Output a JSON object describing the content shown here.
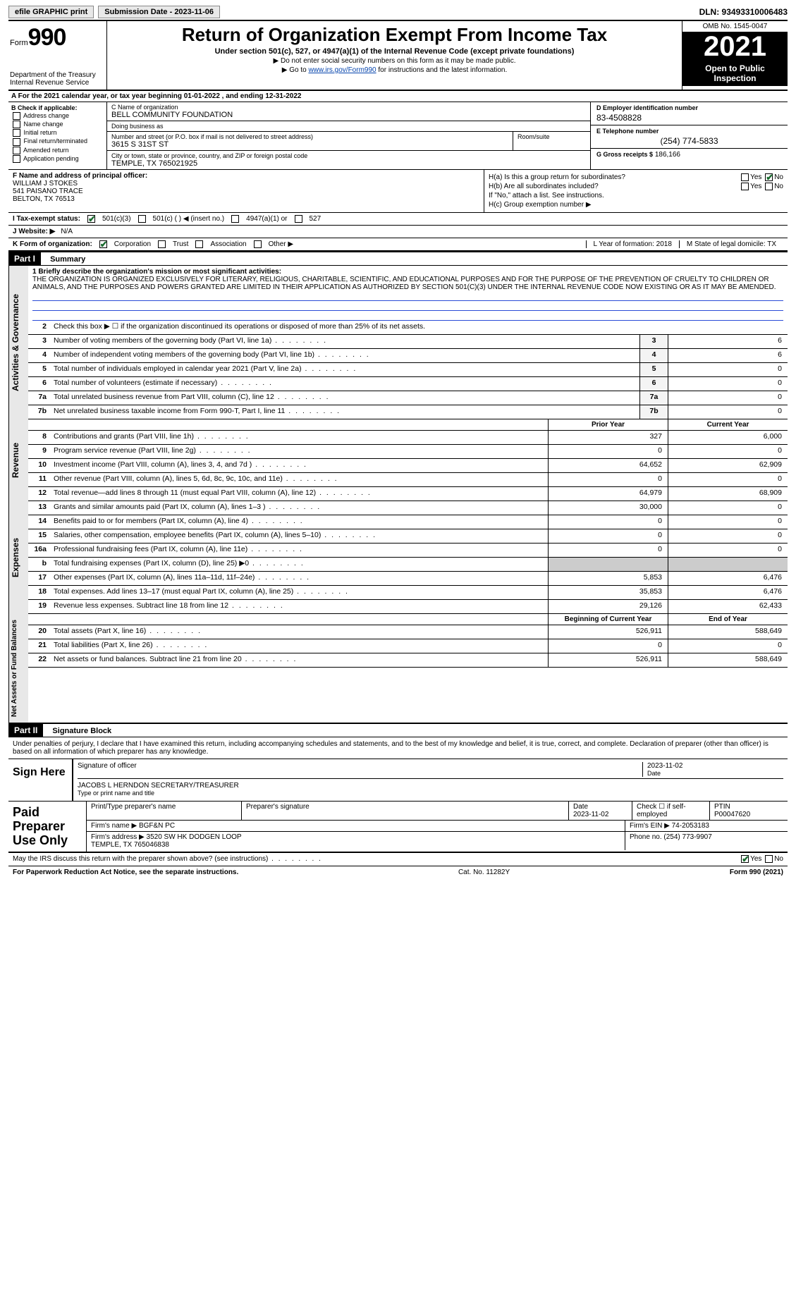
{
  "topbar": {
    "efile": "efile GRAPHIC print",
    "sub_label": "Submission Date - 2023-11-06",
    "dln": "DLN: 93493310006483"
  },
  "header": {
    "form_word": "Form",
    "form_num": "990",
    "dept": "Department of the Treasury\nInternal Revenue Service",
    "title": "Return of Organization Exempt From Income Tax",
    "sub": "Under section 501(c), 527, or 4947(a)(1) of the Internal Revenue Code (except private foundations)",
    "note1": "▶ Do not enter social security numbers on this form as it may be made public.",
    "note2_pre": "▶ Go to ",
    "note2_link": "www.irs.gov/Form990",
    "note2_post": " for instructions and the latest information.",
    "omb": "OMB No. 1545-0047",
    "year": "2021",
    "open": "Open to Public Inspection"
  },
  "row_a": "A For the 2021 calendar year, or tax year beginning 01-01-2022   , and ending 12-31-2022",
  "box_b": {
    "title": "B Check if applicable:",
    "opts": [
      "Address change",
      "Name change",
      "Initial return",
      "Final return/terminated",
      "Amended return",
      "Application pending"
    ]
  },
  "box_c": {
    "name_lbl": "C Name of organization",
    "name": "BELL COMMUNITY FOUNDATION",
    "dba_lbl": "Doing business as",
    "dba": "",
    "street_lbl": "Number and street (or P.O. box if mail is not delivered to street address)",
    "street": "3615 S 31ST ST",
    "room_lbl": "Room/suite",
    "city_lbl": "City or town, state or province, country, and ZIP or foreign postal code",
    "city": "TEMPLE, TX  765021925"
  },
  "box_d": {
    "lbl": "D Employer identification number",
    "val": "83-4508828"
  },
  "box_e": {
    "lbl": "E Telephone number",
    "val": "(254) 774-5833"
  },
  "box_g": {
    "lbl": "G Gross receipts $",
    "val": "186,166"
  },
  "box_f": {
    "lbl": "F Name and address of principal officer:",
    "name": "WILLIAM J STOKES",
    "addr1": "541 PAISANO TRACE",
    "addr2": "BELTON, TX  76513"
  },
  "box_h": {
    "ha": "H(a)  Is this a group return for subordinates?",
    "hb": "H(b)  Are all subordinates included?",
    "hb_note": "If \"No,\" attach a list. See instructions.",
    "hc": "H(c)  Group exemption number ▶"
  },
  "status": {
    "label": "I  Tax-exempt status:",
    "c3": "501(c)(3)",
    "c": "501(c) (  ) ◀ (insert no.)",
    "a1": "4947(a)(1) or",
    "s527": "527"
  },
  "web": {
    "label": "J  Website: ▶",
    "val": "N/A"
  },
  "k": {
    "label": "K Form of organization:",
    "opts": [
      "Corporation",
      "Trust",
      "Association",
      "Other ▶"
    ],
    "l": "L Year of formation: 2018",
    "m": "M State of legal domicile: TX"
  },
  "parts": {
    "p1": "Part I",
    "p1t": "Summary",
    "p2": "Part II",
    "p2t": "Signature Block"
  },
  "mission": {
    "lead": "1  Briefly describe the organization's mission or most significant activities:",
    "text": "THE ORGANIZATION IS ORGANIZED EXCLUSIVELY FOR LITERARY, RELIGIOUS, CHARITABLE, SCIENTIFIC, AND EDUCATIONAL PURPOSES AND FOR THE PURPOSE OF THE PREVENTION OF CRUELTY TO CHILDREN OR ANIMALS, AND THE PURPOSES AND POWERS GRANTED ARE LIMITED IN THEIR APPLICATION AS AUTHORIZED BY SECTION 501(C)(3) UNDER THE INTERNAL REVENUE CODE NOW EXISTING OR AS IT MAY BE AMENDED."
  },
  "gov": {
    "l2": "Check this box ▶ ☐ if the organization discontinued its operations or disposed of more than 25% of its net assets.",
    "rows": [
      {
        "n": "3",
        "d": "Number of voting members of the governing body (Part VI, line 1a)",
        "c": "3",
        "v": "6"
      },
      {
        "n": "4",
        "d": "Number of independent voting members of the governing body (Part VI, line 1b)",
        "c": "4",
        "v": "6"
      },
      {
        "n": "5",
        "d": "Total number of individuals employed in calendar year 2021 (Part V, line 2a)",
        "c": "5",
        "v": "0"
      },
      {
        "n": "6",
        "d": "Total number of volunteers (estimate if necessary)",
        "c": "6",
        "v": "0"
      },
      {
        "n": "7a",
        "d": "Total unrelated business revenue from Part VIII, column (C), line 12",
        "c": "7a",
        "v": "0"
      },
      {
        "n": "7b",
        "d": "Net unrelated business taxable income from Form 990-T, Part I, line 11",
        "c": "7b",
        "v": "0"
      }
    ]
  },
  "col_hdrs": {
    "py": "Prior Year",
    "cy": "Current Year",
    "boy": "Beginning of Current Year",
    "eoy": "End of Year"
  },
  "rev": [
    {
      "n": "8",
      "d": "Contributions and grants (Part VIII, line 1h)",
      "p": "327",
      "c": "6,000"
    },
    {
      "n": "9",
      "d": "Program service revenue (Part VIII, line 2g)",
      "p": "0",
      "c": "0"
    },
    {
      "n": "10",
      "d": "Investment income (Part VIII, column (A), lines 3, 4, and 7d )",
      "p": "64,652",
      "c": "62,909"
    },
    {
      "n": "11",
      "d": "Other revenue (Part VIII, column (A), lines 5, 6d, 8c, 9c, 10c, and 11e)",
      "p": "0",
      "c": "0"
    },
    {
      "n": "12",
      "d": "Total revenue—add lines 8 through 11 (must equal Part VIII, column (A), line 12)",
      "p": "64,979",
      "c": "68,909"
    }
  ],
  "exp": [
    {
      "n": "13",
      "d": "Grants and similar amounts paid (Part IX, column (A), lines 1–3 )",
      "p": "30,000",
      "c": "0"
    },
    {
      "n": "14",
      "d": "Benefits paid to or for members (Part IX, column (A), line 4)",
      "p": "0",
      "c": "0"
    },
    {
      "n": "15",
      "d": "Salaries, other compensation, employee benefits (Part IX, column (A), lines 5–10)",
      "p": "0",
      "c": "0"
    },
    {
      "n": "16a",
      "d": "Professional fundraising fees (Part IX, column (A), line 11e)",
      "p": "0",
      "c": "0"
    },
    {
      "n": "b",
      "d": "Total fundraising expenses (Part IX, column (D), line 25) ▶0",
      "p": "",
      "c": "",
      "shade": true
    },
    {
      "n": "17",
      "d": "Other expenses (Part IX, column (A), lines 11a–11d, 11f–24e)",
      "p": "5,853",
      "c": "6,476"
    },
    {
      "n": "18",
      "d": "Total expenses. Add lines 13–17 (must equal Part IX, column (A), line 25)",
      "p": "35,853",
      "c": "6,476"
    },
    {
      "n": "19",
      "d": "Revenue less expenses. Subtract line 18 from line 12",
      "p": "29,126",
      "c": "62,433"
    }
  ],
  "na": [
    {
      "n": "20",
      "d": "Total assets (Part X, line 16)",
      "p": "526,911",
      "c": "588,649"
    },
    {
      "n": "21",
      "d": "Total liabilities (Part X, line 26)",
      "p": "0",
      "c": "0"
    },
    {
      "n": "22",
      "d": "Net assets or fund balances. Subtract line 21 from line 20",
      "p": "526,911",
      "c": "588,649"
    }
  ],
  "sig_decl": "Under penalties of perjury, I declare that I have examined this return, including accompanying schedules and statements, and to the best of my knowledge and belief, it is true, correct, and complete. Declaration of preparer (other than officer) is based on all information of which preparer has any knowledge.",
  "sign": {
    "here": "Sign Here",
    "sig_lbl": "Signature of officer",
    "date": "2023-11-02",
    "date_lbl": "Date",
    "name": "JACOBS L HERNDON  SECRETARY/TREASURER",
    "name_lbl": "Type or print name and title"
  },
  "prep": {
    "title": "Paid Preparer Use Only",
    "h": [
      "Print/Type preparer's name",
      "Preparer's signature",
      "Date",
      "Check ☐ if self-employed",
      "PTIN"
    ],
    "date": "2023-11-02",
    "ptin": "P00047620",
    "firm_lbl": "Firm's name ▶",
    "firm": "BGF&N PC",
    "ein_lbl": "Firm's EIN ▶",
    "ein": "74-2053183",
    "addr_lbl": "Firm's address ▶",
    "addr": "3520 SW HK DODGEN LOOP\nTEMPLE, TX  765046838",
    "phone_lbl": "Phone no.",
    "phone": "(254) 773-9907"
  },
  "foot": {
    "q": "May the IRS discuss this return with the preparer shown above? (see instructions)",
    "yes": "Yes",
    "no": "No",
    "pra": "For Paperwork Reduction Act Notice, see the separate instructions.",
    "cat": "Cat. No. 11282Y",
    "form": "Form 990 (2021)"
  },
  "vlabels": {
    "gov": "Activities & Governance",
    "rev": "Revenue",
    "exp": "Expenses",
    "na": "Net Assets or Fund Balances"
  }
}
